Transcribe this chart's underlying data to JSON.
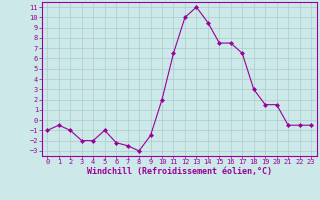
{
  "x": [
    0,
    1,
    2,
    3,
    4,
    5,
    6,
    7,
    8,
    9,
    10,
    11,
    12,
    13,
    14,
    15,
    16,
    17,
    18,
    19,
    20,
    21,
    22,
    23
  ],
  "y": [
    -1,
    -0.5,
    -1,
    -2,
    -2,
    -1,
    -2.2,
    -2.5,
    -3,
    -1.5,
    2,
    6.5,
    10,
    11,
    9.5,
    7.5,
    7.5,
    6.5,
    3,
    1.5,
    1.5,
    -0.5,
    -0.5,
    -0.5
  ],
  "line_color": "#990099",
  "marker": "D",
  "marker_size": 2.0,
  "bg_color": "#cce8e8",
  "grid_color": "#aacccc",
  "xlabel": "Windchill (Refroidissement éolien,°C)",
  "xlim": [
    -0.5,
    23.5
  ],
  "ylim": [
    -3.5,
    11.5
  ],
  "xticks": [
    0,
    1,
    2,
    3,
    4,
    5,
    6,
    7,
    8,
    9,
    10,
    11,
    12,
    13,
    14,
    15,
    16,
    17,
    18,
    19,
    20,
    21,
    22,
    23
  ],
  "yticks": [
    -3,
    -2,
    -1,
    0,
    1,
    2,
    3,
    4,
    5,
    6,
    7,
    8,
    9,
    10,
    11
  ],
  "tick_color": "#990099",
  "tick_fontsize": 5.0,
  "xlabel_fontsize": 6.0,
  "spine_color": "#990099",
  "linewidth": 0.8
}
